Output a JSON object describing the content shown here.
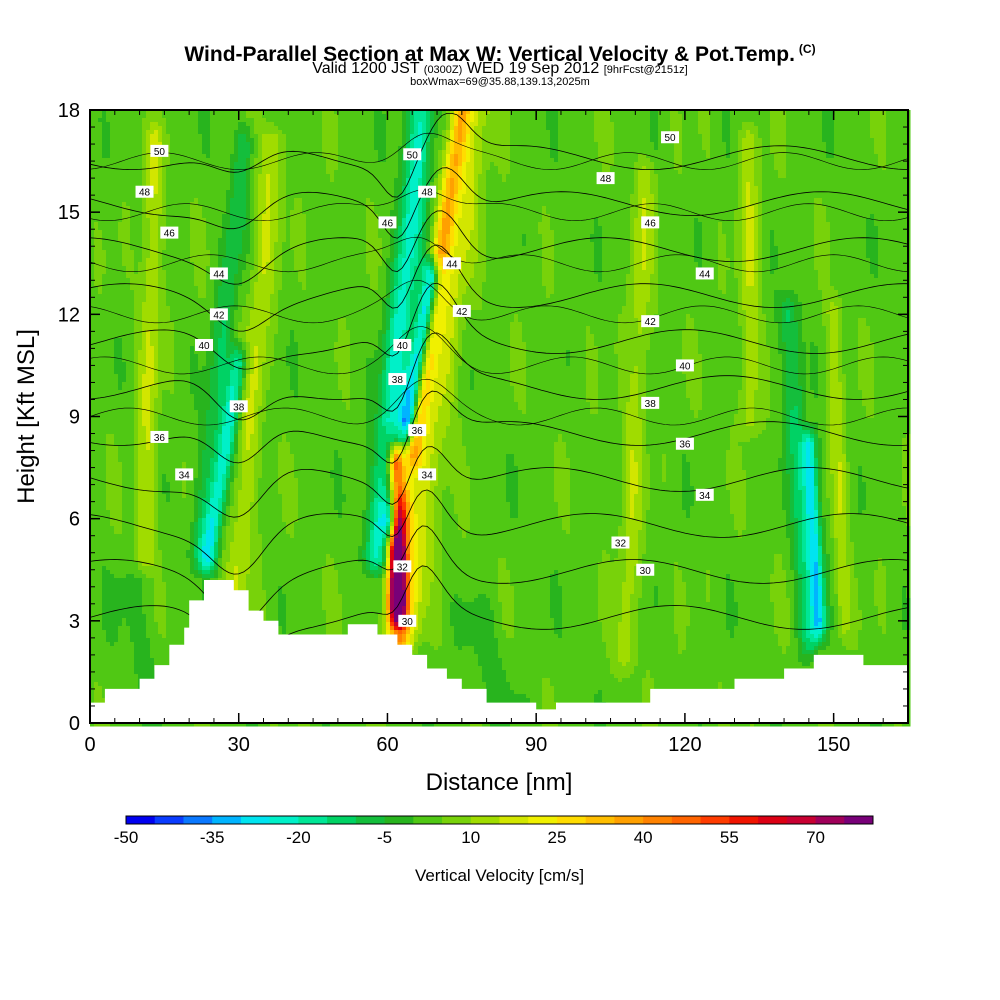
{
  "header": {
    "title": "Wind-Parallel Section at Max W: Vertical Velocity & Pot.Temp.",
    "title_units": "(C)",
    "subtitle_a": "Valid 1200 JST",
    "subtitle_b": "(0300Z)",
    "subtitle_c": "WED 19 Sep 2012",
    "subtitle_d": "[9hrFcst@2151z]",
    "subtitle_e": "boxWmax=69@35.88,139.13,2025m"
  },
  "chart_data": {
    "type": "heatmap",
    "xlabel": "Distance [nm]",
    "ylabel": "Height [Kft MSL]",
    "xlim": [
      0,
      165
    ],
    "ylim": [
      0,
      18
    ],
    "xticks": [
      0,
      30,
      60,
      90,
      120,
      150
    ],
    "yticks": [
      0,
      3,
      6,
      9,
      12,
      15,
      18
    ],
    "background_value": 3,
    "terrain": [
      [
        0,
        0.6
      ],
      [
        3,
        0.6
      ],
      [
        3,
        1.0
      ],
      [
        10,
        1.0
      ],
      [
        10,
        1.3
      ],
      [
        13,
        1.3
      ],
      [
        13,
        1.7
      ],
      [
        16,
        1.7
      ],
      [
        16,
        2.3
      ],
      [
        19,
        2.3
      ],
      [
        19,
        2.8
      ],
      [
        20,
        2.8
      ],
      [
        20,
        3.6
      ],
      [
        23,
        3.6
      ],
      [
        23,
        4.2
      ],
      [
        29,
        4.2
      ],
      [
        29,
        3.9
      ],
      [
        32,
        3.9
      ],
      [
        32,
        3.3
      ],
      [
        35,
        3.3
      ],
      [
        35,
        3.0
      ],
      [
        38,
        3.0
      ],
      [
        38,
        2.6
      ],
      [
        52,
        2.6
      ],
      [
        52,
        2.9
      ],
      [
        58,
        2.9
      ],
      [
        58,
        2.6
      ],
      [
        62,
        2.6
      ],
      [
        62,
        2.3
      ],
      [
        65,
        2.3
      ],
      [
        65,
        2.0
      ],
      [
        68,
        2.0
      ],
      [
        68,
        1.6
      ],
      [
        72,
        1.6
      ],
      [
        72,
        1.3
      ],
      [
        75,
        1.3
      ],
      [
        75,
        1.0
      ],
      [
        80,
        1.0
      ],
      [
        80,
        0.6
      ],
      [
        90,
        0.6
      ],
      [
        90,
        0.4
      ],
      [
        94,
        0.4
      ],
      [
        94,
        0.6
      ],
      [
        113,
        0.6
      ],
      [
        113,
        1.0
      ],
      [
        130,
        1.0
      ],
      [
        130,
        1.3
      ],
      [
        140,
        1.3
      ],
      [
        140,
        1.6
      ],
      [
        146,
        1.6
      ],
      [
        146,
        2.0
      ],
      [
        156,
        2.0
      ],
      [
        156,
        1.7
      ],
      [
        165,
        1.7
      ]
    ],
    "features": [
      {
        "x0": 24,
        "x1": 30,
        "y0": 5,
        "y1": 10.5,
        "halfwidth": 1.8,
        "value": -25
      },
      {
        "x0": 22,
        "x1": 31,
        "y0": 5,
        "y1": 17,
        "halfwidth": 2.2,
        "value": -12
      },
      {
        "x0": 29,
        "x1": 37,
        "y0": 3,
        "y1": 17,
        "halfwidth": 2.5,
        "value": 12
      },
      {
        "x0": 61,
        "x1": 69,
        "y0": 6,
        "y1": 13,
        "halfwidth": 1.8,
        "value": -45
      },
      {
        "x0": 58,
        "x1": 67,
        "y0": 5,
        "y1": 18,
        "halfwidth": 2.8,
        "value": -25
      },
      {
        "x0": 62,
        "x1": 62,
        "y0": 3.5,
        "y1": 7.5,
        "halfwidth": 1.6,
        "value": 62
      },
      {
        "x0": 62,
        "x1": 63,
        "y0": 2.5,
        "y1": 8,
        "halfwidth": 2.5,
        "value": 35
      },
      {
        "x0": 65,
        "x1": 75,
        "y0": 8,
        "y1": 18,
        "halfwidth": 2.0,
        "value": 28
      },
      {
        "x0": 64,
        "x1": 78,
        "y0": 3,
        "y1": 18,
        "halfwidth": 3.5,
        "value": 13
      },
      {
        "x0": 147,
        "x1": 145,
        "y0": 3,
        "y1": 8,
        "halfwidth": 1.5,
        "value": -30
      },
      {
        "x0": 145,
        "x1": 141,
        "y0": 2.5,
        "y1": 12,
        "halfwidth": 2.0,
        "value": -15
      },
      {
        "x0": 133,
        "x1": 133,
        "y0": 9,
        "y1": 17,
        "halfwidth": 2.0,
        "value": 11
      },
      {
        "x0": 152,
        "x1": 150,
        "y0": 3,
        "y1": 12,
        "halfwidth": 1.6,
        "value": 10
      },
      {
        "x0": 83,
        "x1": 78,
        "y0": 0.5,
        "y1": 3,
        "halfwidth": 4,
        "value": -5
      },
      {
        "x0": 108,
        "x1": 112,
        "y0": 2,
        "y1": 16,
        "halfwidth": 2.2,
        "value": 10
      },
      {
        "x0": 12,
        "x1": 8,
        "y0": 0.5,
        "y1": 4,
        "halfwidth": 4,
        "value": -4
      },
      {
        "x0": 11,
        "x1": 13,
        "y0": 5,
        "y1": 17,
        "halfwidth": 2,
        "value": 12
      }
    ],
    "contours_theta_C": [
      30,
      32,
      34,
      36,
      38,
      40,
      42,
      44,
      46,
      48,
      50
    ],
    "contour_labels": [
      {
        "text": "50",
        "x": 14,
        "y": 16.8
      },
      {
        "text": "48",
        "x": 11,
        "y": 15.6
      },
      {
        "text": "46",
        "x": 16,
        "y": 14.4
      },
      {
        "text": "44",
        "x": 26,
        "y": 13.2
      },
      {
        "text": "42",
        "x": 26,
        "y": 12.0
      },
      {
        "text": "40",
        "x": 23,
        "y": 11.1
      },
      {
        "text": "38",
        "x": 30,
        "y": 9.3
      },
      {
        "text": "36",
        "x": 14,
        "y": 8.4
      },
      {
        "text": "34",
        "x": 19,
        "y": 7.3
      },
      {
        "text": "50",
        "x": 65,
        "y": 16.7
      },
      {
        "text": "48",
        "x": 68,
        "y": 15.6
      },
      {
        "text": "46",
        "x": 60,
        "y": 14.7
      },
      {
        "text": "44",
        "x": 73,
        "y": 13.5
      },
      {
        "text": "42",
        "x": 75,
        "y": 12.1
      },
      {
        "text": "40",
        "x": 63,
        "y": 11.1
      },
      {
        "text": "38",
        "x": 62,
        "y": 10.1
      },
      {
        "text": "36",
        "x": 66,
        "y": 8.6
      },
      {
        "text": "34",
        "x": 68,
        "y": 7.3
      },
      {
        "text": "32",
        "x": 63,
        "y": 4.6
      },
      {
        "text": "30",
        "x": 64,
        "y": 3.0
      },
      {
        "text": "50",
        "x": 117,
        "y": 17.2
      },
      {
        "text": "48",
        "x": 104,
        "y": 16.0
      },
      {
        "text": "46",
        "x": 113,
        "y": 14.7
      },
      {
        "text": "44",
        "x": 124,
        "y": 13.2
      },
      {
        "text": "42",
        "x": 113,
        "y": 11.8
      },
      {
        "text": "40",
        "x": 120,
        "y": 10.5
      },
      {
        "text": "38",
        "x": 113,
        "y": 9.4
      },
      {
        "text": "36",
        "x": 120,
        "y": 8.2
      },
      {
        "text": "34",
        "x": 124,
        "y": 6.7
      },
      {
        "text": "32",
        "x": 107,
        "y": 5.3
      },
      {
        "text": "30",
        "x": 112,
        "y": 4.5
      }
    ],
    "colorbar": {
      "levels": [
        -50,
        -45,
        -40,
        -35,
        -30,
        -25,
        -20,
        -15,
        -10,
        -5,
        0,
        5,
        10,
        15,
        20,
        25,
        30,
        35,
        40,
        45,
        50,
        55,
        60,
        65,
        70,
        75,
        80
      ],
      "colors": [
        "#0000f0",
        "#0a3cff",
        "#0a78ff",
        "#00b4ff",
        "#00e4f0",
        "#00f0c8",
        "#00e696",
        "#00d264",
        "#14be3c",
        "#28b41e",
        "#50c814",
        "#78d20a",
        "#a0dc00",
        "#d2e600",
        "#f0f000",
        "#ffdc00",
        "#ffbe00",
        "#ffa000",
        "#ff8200",
        "#ff6400",
        "#ff3c00",
        "#f01400",
        "#dc0014",
        "#c80032",
        "#a0005a",
        "#780078"
      ],
      "tick_labels": [
        "-50",
        "-35",
        "-20",
        "-5",
        "10",
        "25",
        "40",
        "55",
        "70"
      ],
      "label": "Vertical Velocity [cm/s]"
    }
  }
}
